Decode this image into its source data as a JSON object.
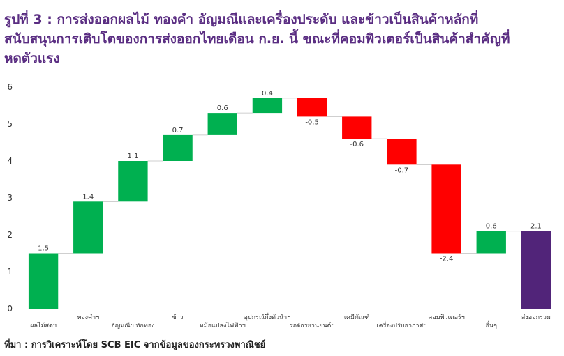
{
  "title_lines": [
    "รูปที่ 3 : การส่งออกผลไม้ ทองคำ อัญมณีและเครื่องประดับ และข้าวเป็นสินค้าหลักที่",
    "สนับสนุนการเติบโตของการส่งออกไทยเดือน ก.ย. นี้ ขณะที่คอมพิวเตอร์เป็นสินค้าสำคัญที่",
    "หดตัวแรง"
  ],
  "source": "ที่มา : การวิเคราะห์โดย SCB EIC จากข้อมูลของกระทรวงพาณิชย์",
  "colors": {
    "increase": "#00b050",
    "decrease": "#ff0000",
    "total": "#512479",
    "title": "#5a2d82"
  },
  "chart_data": {
    "type": "waterfall",
    "ylim": [
      0,
      6
    ],
    "yticks": [
      0,
      1,
      2,
      3,
      4,
      5,
      6
    ],
    "categories": [
      "ผลไม้สดฯ",
      "ทองคำฯ",
      "อัญมณีฯ ทักทอง",
      "ข้าว",
      "หม้อแปลงไฟฟ้าฯ",
      "อุปกรณ์กึ่งตัวนำฯ",
      "รถจักรยานยนต์ฯ",
      "เคมีภัณฑ์",
      "เครื่องปรับอากาศฯ",
      "คอมพิวเตอร์ฯ",
      "อื่นๆ",
      "ส่งออกรวม"
    ],
    "values": [
      1.5,
      1.4,
      1.1,
      0.7,
      0.6,
      0.4,
      -0.5,
      -0.6,
      -0.7,
      -2.4,
      0.6,
      2.1
    ],
    "labels": [
      "1.5",
      "1.4",
      "1.1",
      "0.7",
      "0.6",
      "0.4",
      "-0.5",
      "-0.6",
      "-0.7",
      "-2.4",
      "0.6",
      "2.1"
    ],
    "is_total": [
      false,
      false,
      false,
      false,
      false,
      false,
      false,
      false,
      false,
      false,
      false,
      true
    ]
  }
}
